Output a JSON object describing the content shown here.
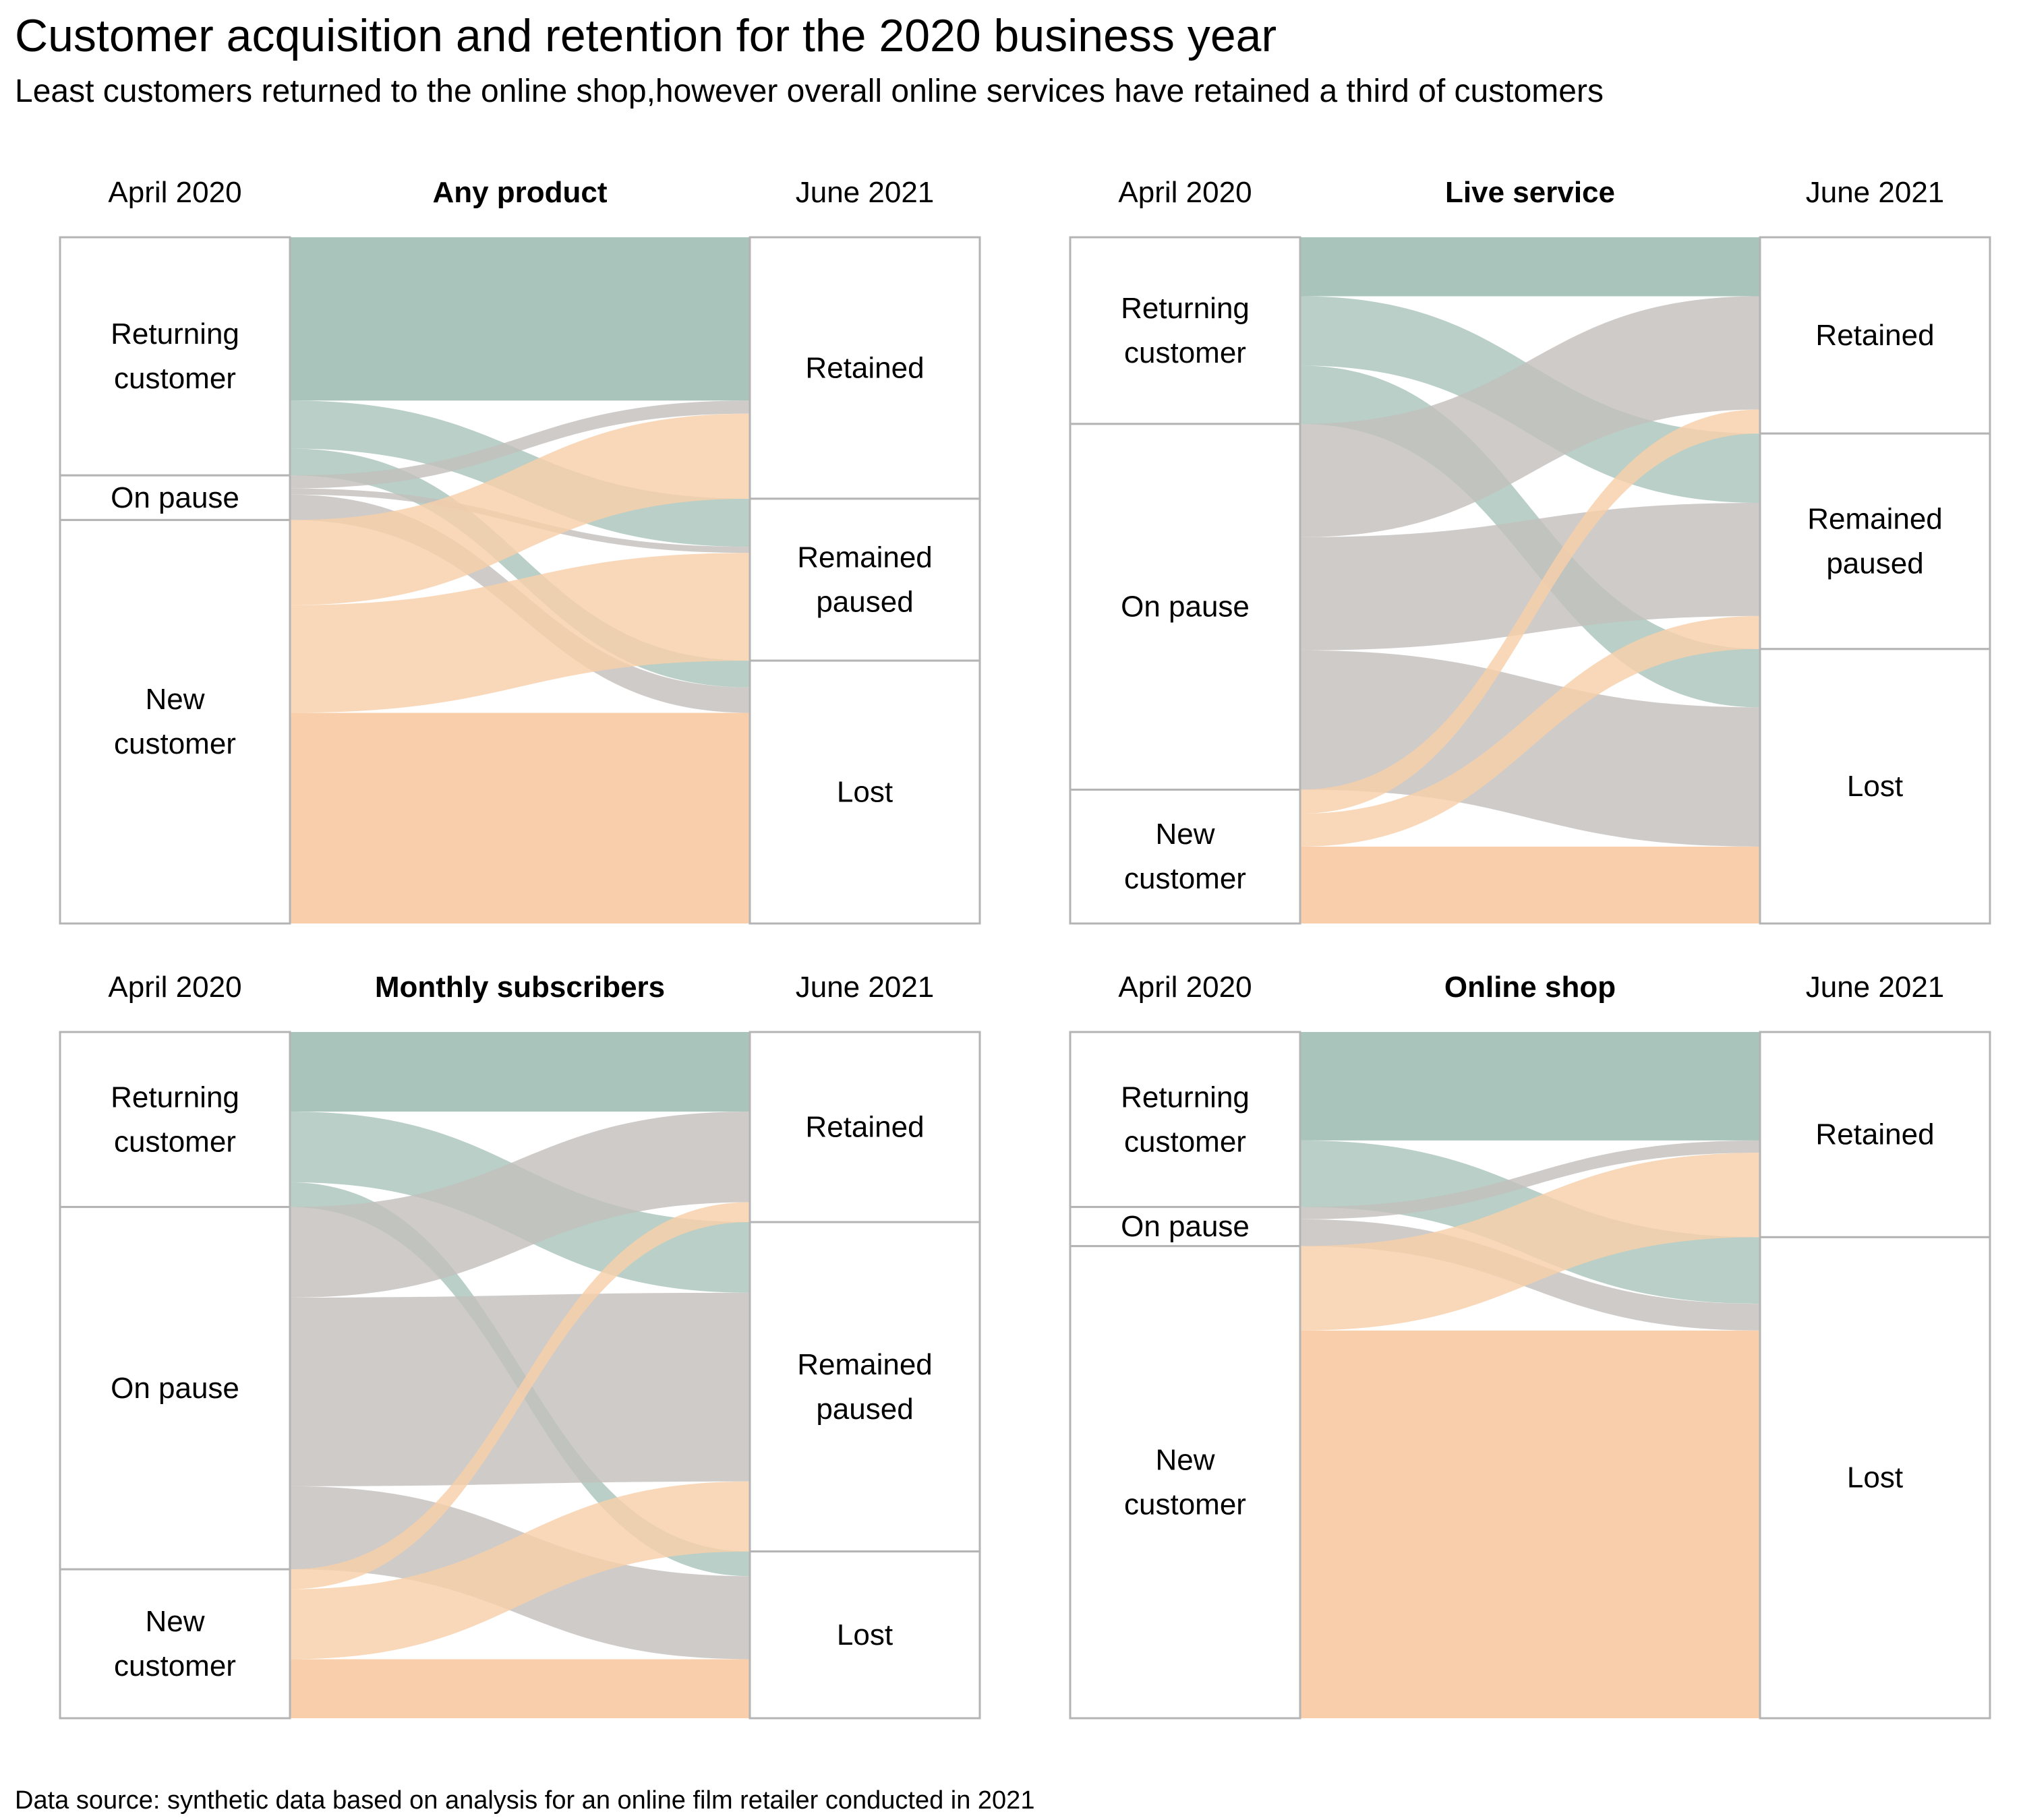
{
  "title": "Customer acquisition and retention for the 2020 business year",
  "subtitle": "Least customers returned to the online shop,however overall online services have retained a third of customers",
  "source": "Data source: synthetic data based on analysis for an online film retailer conducted in 2021",
  "colors": {
    "returning": "#a9c4bb",
    "pause": "#c3bfbd",
    "new": "#f8cfaa",
    "box_border": "#b4b4b4"
  },
  "chart_data": [
    {
      "type": "sankey",
      "title": "Any product",
      "left_header": "April 2020",
      "right_header": "June 2021",
      "sources": [
        {
          "id": "returning",
          "label": [
            "Returning",
            "customer"
          ],
          "value": 34.7,
          "color": "returning"
        },
        {
          "id": "pause",
          "label": [
            "On pause"
          ],
          "value": 6.5,
          "color": "pause"
        },
        {
          "id": "new",
          "label": [
            "New",
            "customer"
          ],
          "value": 58.8,
          "color": "new"
        }
      ],
      "targets": [
        {
          "id": "retained",
          "label": [
            "Retained"
          ],
          "value": 38.1
        },
        {
          "id": "paused",
          "label": [
            "Remained",
            "paused"
          ],
          "value": 23.6
        },
        {
          "id": "lost",
          "label": [
            "Lost"
          ],
          "value": 38.3
        }
      ],
      "flows": [
        {
          "source": "returning",
          "target": "retained",
          "value": 23.8
        },
        {
          "source": "returning",
          "target": "paused",
          "value": 7.0
        },
        {
          "source": "returning",
          "target": "lost",
          "value": 3.9
        },
        {
          "source": "pause",
          "target": "retained",
          "value": 1.9
        },
        {
          "source": "pause",
          "target": "paused",
          "value": 0.9
        },
        {
          "source": "pause",
          "target": "lost",
          "value": 3.7
        },
        {
          "source": "new",
          "target": "retained",
          "value": 12.4
        },
        {
          "source": "new",
          "target": "paused",
          "value": 15.7
        },
        {
          "source": "new",
          "target": "lost",
          "value": 30.7
        }
      ]
    },
    {
      "type": "sankey",
      "title": "Live service",
      "left_header": "April 2020",
      "right_header": "June 2021",
      "sources": [
        {
          "id": "returning",
          "label": [
            "Returning",
            "customer"
          ],
          "value": 27.2,
          "color": "returning"
        },
        {
          "id": "pause",
          "label": [
            "On pause"
          ],
          "value": 53.3,
          "color": "pause"
        },
        {
          "id": "new",
          "label": [
            "New",
            "customer"
          ],
          "value": 19.5,
          "color": "new"
        }
      ],
      "targets": [
        {
          "id": "retained",
          "label": [
            "Retained"
          ],
          "value": 28.6
        },
        {
          "id": "paused",
          "label": [
            "Remained",
            "paused"
          ],
          "value": 31.4
        },
        {
          "id": "lost",
          "label": [
            "Lost"
          ],
          "value": 40.0
        }
      ],
      "flows": [
        {
          "source": "returning",
          "target": "retained",
          "value": 8.6
        },
        {
          "source": "returning",
          "target": "paused",
          "value": 10.1
        },
        {
          "source": "returning",
          "target": "lost",
          "value": 8.5
        },
        {
          "source": "pause",
          "target": "retained",
          "value": 16.5
        },
        {
          "source": "pause",
          "target": "paused",
          "value": 16.5
        },
        {
          "source": "pause",
          "target": "lost",
          "value": 20.3
        },
        {
          "source": "new",
          "target": "retained",
          "value": 3.5
        },
        {
          "source": "new",
          "target": "paused",
          "value": 4.8
        },
        {
          "source": "new",
          "target": "lost",
          "value": 11.2
        }
      ]
    },
    {
      "type": "sankey",
      "title": "Monthly subscribers",
      "left_header": "April 2020",
      "right_header": "June 2021",
      "sources": [
        {
          "id": "returning",
          "label": [
            "Returning",
            "customer"
          ],
          "value": 25.5,
          "color": "returning"
        },
        {
          "id": "pause",
          "label": [
            "On pause"
          ],
          "value": 52.8,
          "color": "pause"
        },
        {
          "id": "new",
          "label": [
            "New",
            "customer"
          ],
          "value": 21.7,
          "color": "new"
        }
      ],
      "targets": [
        {
          "id": "retained",
          "label": [
            "Retained"
          ],
          "value": 27.7
        },
        {
          "id": "paused",
          "label": [
            "Remained",
            "paused"
          ],
          "value": 48.0
        },
        {
          "id": "lost",
          "label": [
            "Lost"
          ],
          "value": 24.3
        }
      ],
      "flows": [
        {
          "source": "returning",
          "target": "retained",
          "value": 11.6
        },
        {
          "source": "returning",
          "target": "paused",
          "value": 10.3
        },
        {
          "source": "returning",
          "target": "lost",
          "value": 3.6
        },
        {
          "source": "pause",
          "target": "retained",
          "value": 13.2
        },
        {
          "source": "pause",
          "target": "paused",
          "value": 27.5
        },
        {
          "source": "pause",
          "target": "lost",
          "value": 12.1
        },
        {
          "source": "new",
          "target": "retained",
          "value": 2.9
        },
        {
          "source": "new",
          "target": "paused",
          "value": 10.2
        },
        {
          "source": "new",
          "target": "lost",
          "value": 8.6
        }
      ]
    },
    {
      "type": "sankey",
      "title": "Online shop",
      "left_header": "April 2020",
      "right_header": "June 2021",
      "sources": [
        {
          "id": "returning",
          "label": [
            "Returning",
            "customer"
          ],
          "value": 25.5,
          "color": "returning"
        },
        {
          "id": "pause",
          "label": [
            "On pause"
          ],
          "value": 5.7,
          "color": "pause"
        },
        {
          "id": "new",
          "label": [
            "New",
            "customer"
          ],
          "value": 68.8,
          "color": "new"
        }
      ],
      "targets": [
        {
          "id": "retained",
          "label": [
            "Retained"
          ],
          "value": 29.9
        },
        {
          "id": "lost",
          "label": [
            "Lost"
          ],
          "value": 70.1
        }
      ],
      "flows": [
        {
          "source": "returning",
          "target": "retained",
          "value": 15.8
        },
        {
          "source": "returning",
          "target": "lost",
          "value": 9.7
        },
        {
          "source": "pause",
          "target": "retained",
          "value": 1.8
        },
        {
          "source": "pause",
          "target": "lost",
          "value": 3.9
        },
        {
          "source": "new",
          "target": "retained",
          "value": 12.3
        },
        {
          "source": "new",
          "target": "lost",
          "value": 56.5
        }
      ]
    }
  ]
}
